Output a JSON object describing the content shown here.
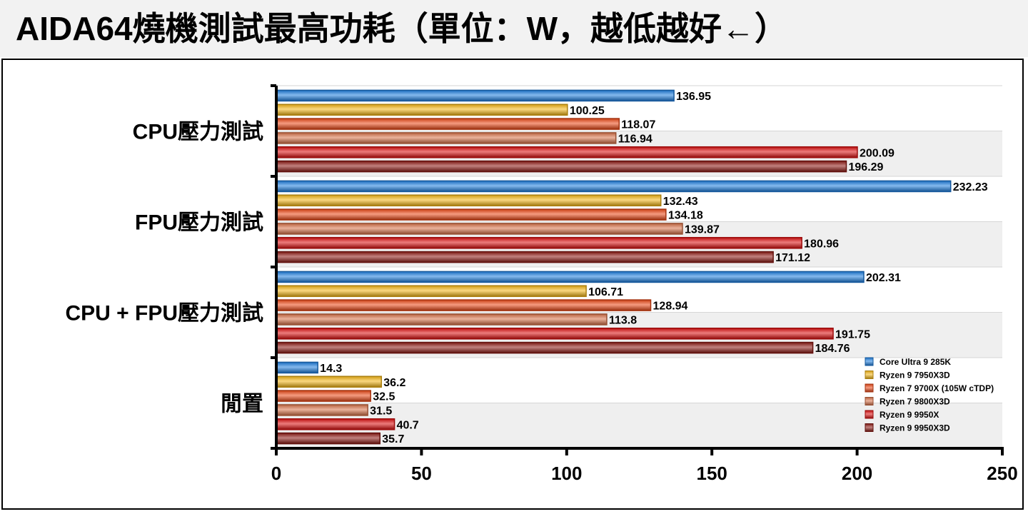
{
  "title": "AIDA64燒機測試最高功耗（單位：W，越低越好←）",
  "chart_data": {
    "type": "bar",
    "orientation": "horizontal",
    "title": "AIDA64燒機測試最高功耗（單位：W，越低越好←）",
    "categories": [
      "CPU壓力測試",
      "FPU壓力測試",
      "CPU + FPU壓力測試",
      "閒置"
    ],
    "series": [
      {
        "name": "Core Ultra 9 285K",
        "color": "#1f7fe0",
        "values": [
          136.95,
          232.23,
          202.31,
          14.3
        ]
      },
      {
        "name": "Ryzen 9 7950X3D",
        "color": "#f6b818",
        "values": [
          100.25,
          132.43,
          106.71,
          36.2
        ]
      },
      {
        "name": "Ryzen 7 9700X (105W cTDP)",
        "color": "#ec4a18",
        "values": [
          118.07,
          134.18,
          128.94,
          32.5
        ]
      },
      {
        "name": "Ryzen 7 9800X3D",
        "color": "#d9734a",
        "values": [
          116.94,
          139.87,
          113.8,
          31.5
        ]
      },
      {
        "name": "Ryzen 9 9950X",
        "color": "#dd1010",
        "values": [
          200.09,
          180.96,
          191.75,
          40.7
        ]
      },
      {
        "name": "Ryzen 9 9950X3D",
        "color": "#8e1a14",
        "values": [
          196.29,
          171.12,
          184.76,
          35.7
        ]
      }
    ],
    "value_labels": [
      [
        "136.95",
        "232.23",
        "202.31",
        "14.3"
      ],
      [
        "100.25",
        "132.43",
        "106.71",
        "36.2"
      ],
      [
        "118.07",
        "134.18",
        "128.94",
        "32.5"
      ],
      [
        "116.94",
        "139.87",
        "113.8",
        "31.5"
      ],
      [
        "200.09",
        "180.96",
        "191.75",
        "40.7"
      ],
      [
        "196.29",
        "171.12",
        "184.76",
        "35.7"
      ]
    ],
    "xlim": [
      0,
      250
    ],
    "xticks": [
      0,
      50,
      100,
      150,
      200,
      250
    ],
    "xtick_labels": [
      "0",
      "50",
      "100",
      "150",
      "200",
      "250"
    ],
    "xlabel": "",
    "ylabel": "",
    "grid": true,
    "legend_position": "bottom-right"
  }
}
